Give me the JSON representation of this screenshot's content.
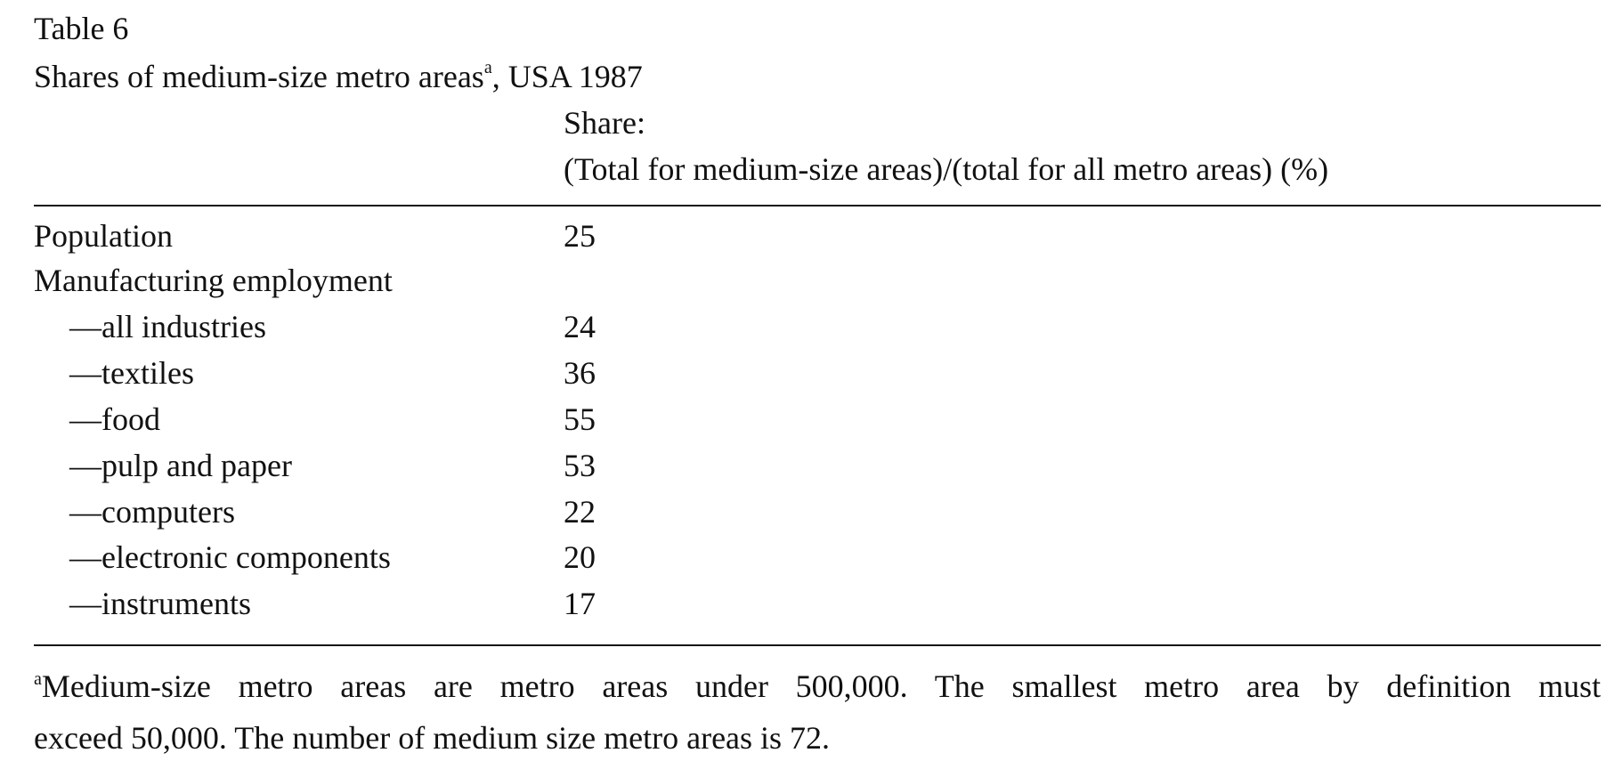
{
  "table": {
    "number": "Table 6",
    "title": "Shares of medium-size metro areas",
    "title_sup": "a",
    "title_suffix": ", USA 1987",
    "column_header_line1": "Share:",
    "column_header_line2": "(Total for medium-size areas)/(total for all metro areas) (%)",
    "rows": [
      {
        "label": "Population",
        "value": "25",
        "indent": false
      },
      {
        "label": "Manufacturing employment",
        "value": "",
        "indent": false
      },
      {
        "label": "—all industries",
        "value": "24",
        "indent": true
      },
      {
        "label": "—textiles",
        "value": "36",
        "indent": true
      },
      {
        "label": "—food",
        "value": "55",
        "indent": true
      },
      {
        "label": "—pulp and paper",
        "value": "53",
        "indent": true
      },
      {
        "label": "—computers",
        "value": "22",
        "indent": true
      },
      {
        "label": "—electronic components",
        "value": "20",
        "indent": true
      },
      {
        "label": "—instruments",
        "value": "17",
        "indent": true
      }
    ],
    "footnote_marker": "a",
    "footnote_line1": "Medium-size metro areas are metro areas under 500,000. The smallest metro area by definition must",
    "footnote_line2": "exceed 50,000. The number of medium size metro areas is 72."
  }
}
